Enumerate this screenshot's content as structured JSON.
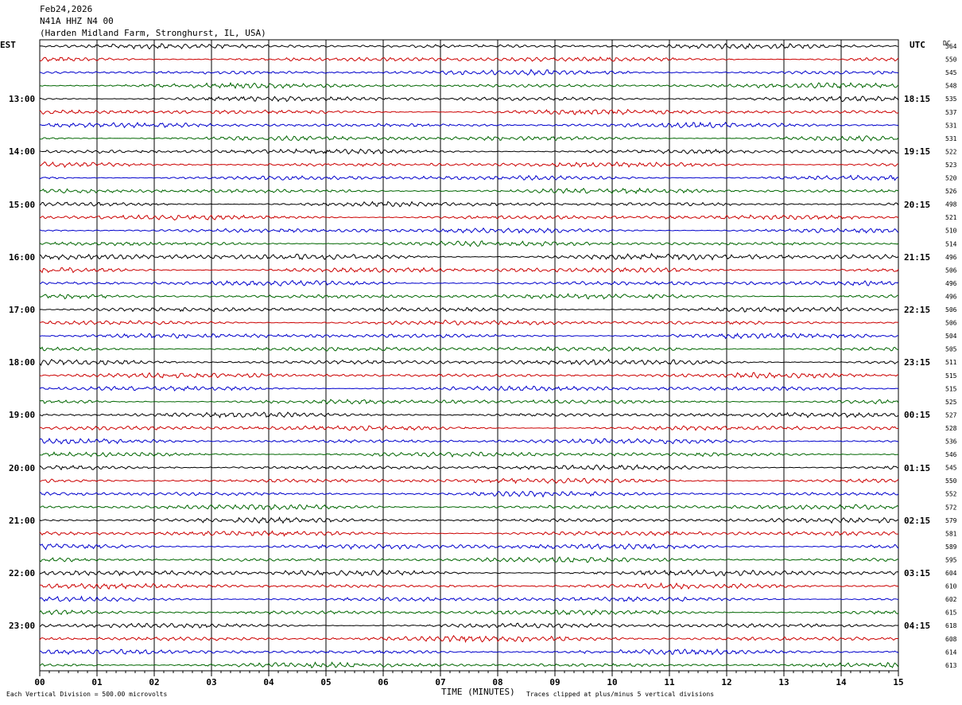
{
  "header": {
    "date": "Feb24,2026",
    "station": "N41A HHZ N4 00",
    "location": "(Harden Midland Farm, Stronghurst, IL, USA)"
  },
  "left_axis_label": "EST",
  "right_axis_label": "UTC",
  "dc_label": "DC",
  "footer": {
    "scale_note": "Each Vertical Division =  500.00 microvolts",
    "xlabel": "TIME (MINUTES)",
    "clip_note": "Traces clipped at plus/minus 5 vertical divisions"
  },
  "colors": {
    "cycle": [
      "#000000",
      "#cc0000",
      "#0000cc",
      "#006600"
    ],
    "grid": "#000000"
  },
  "chart_data": {
    "type": "line",
    "title": "",
    "xlabel": "TIME (MINUTES)",
    "x_ticks": [
      "00",
      "01",
      "02",
      "03",
      "04",
      "05",
      "06",
      "07",
      "08",
      "09",
      "10",
      "11",
      "12",
      "13",
      "14",
      "15"
    ],
    "xlim": [
      0,
      15
    ],
    "traces_per_hour": 4,
    "minutes_per_trace": 15,
    "est_labels": [
      "13:00",
      "14:00",
      "15:00",
      "16:00",
      "17:00",
      "18:00",
      "19:00",
      "20:00",
      "21:00",
      "22:00",
      "23:00"
    ],
    "utc_labels": [
      "18:15",
      "19:15",
      "20:15",
      "21:15",
      "22:15",
      "23:15",
      "00:15",
      "01:15",
      "02:15",
      "03:15",
      "04:15"
    ],
    "dc_offsets": [
      564,
      550,
      545,
      548,
      535,
      537,
      531,
      531,
      522,
      523,
      520,
      526,
      498,
      521,
      510,
      514,
      496,
      506,
      496,
      496,
      506,
      506,
      504,
      505,
      511,
      515,
      515,
      525,
      527,
      528,
      536,
      546,
      545,
      550,
      552,
      572,
      579,
      581,
      589,
      595,
      604,
      610,
      602,
      615,
      618,
      608,
      614,
      613
    ],
    "trace_amplitudes": [
      1,
      1,
      1,
      1,
      1,
      1,
      1,
      1,
      1,
      1,
      1,
      1,
      1,
      1,
      1,
      1,
      1.3,
      1.1,
      1,
      1,
      1,
      1,
      1,
      1,
      1.2,
      1,
      1,
      1,
      1,
      1,
      1,
      1,
      1,
      1,
      1,
      1,
      1,
      1,
      1.2,
      1,
      1.2,
      1,
      1,
      1,
      1,
      1.2,
      1,
      1
    ]
  }
}
